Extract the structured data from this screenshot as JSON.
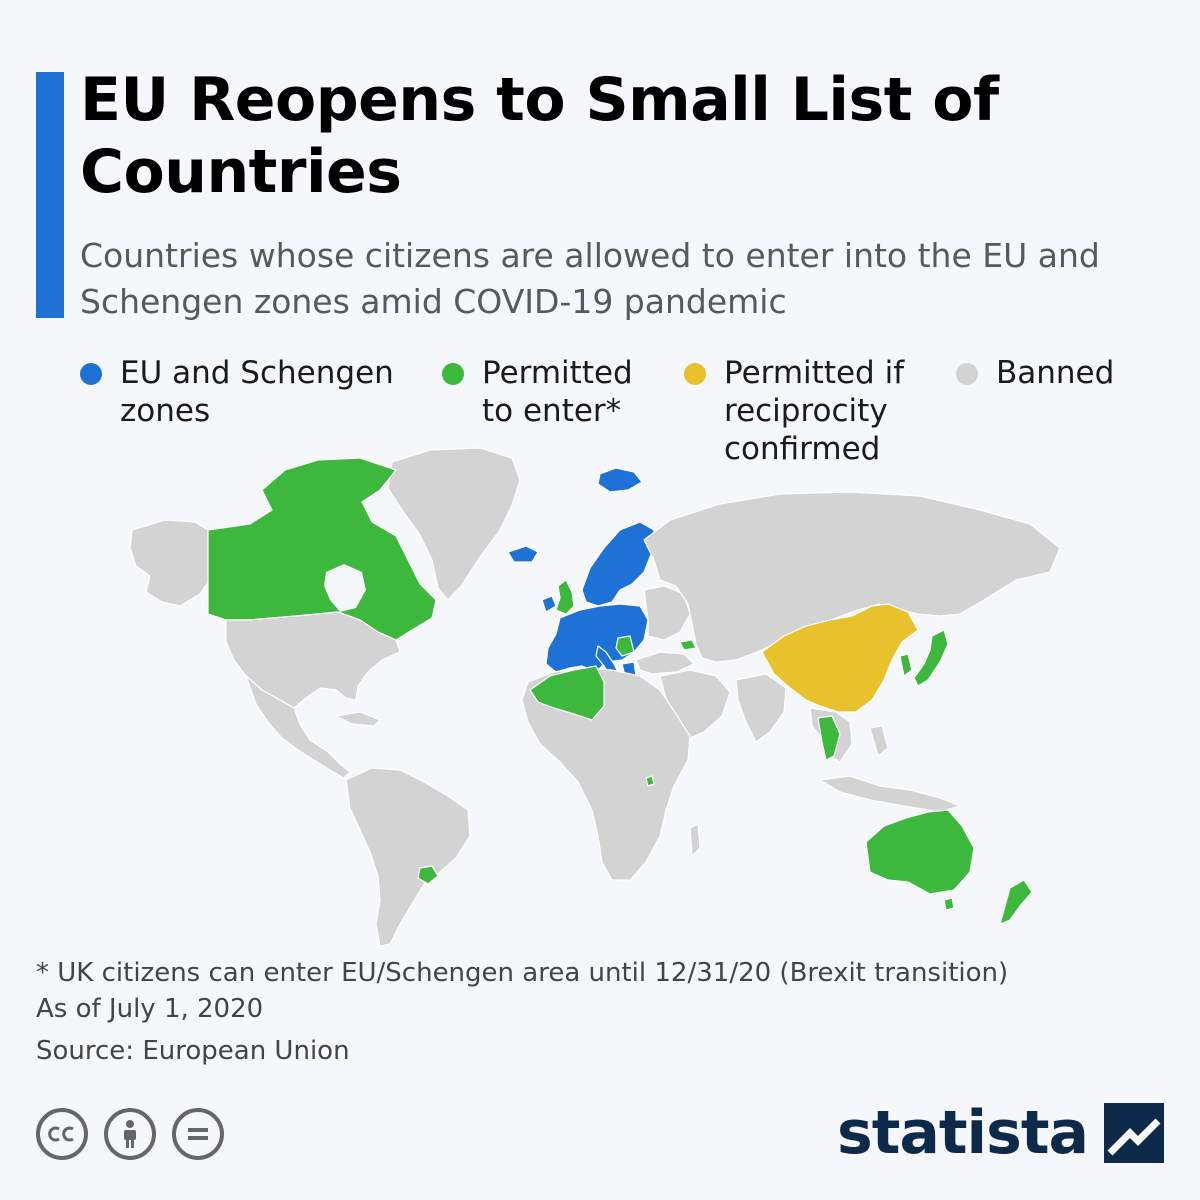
{
  "header": {
    "title": "EU Reopens to Small List of Countries",
    "subtitle": "Countries whose citizens are allowed to enter into the EU and Schengen zones amid COVID-19 pandemic"
  },
  "legend": [
    {
      "label": "EU and Schengen\nzones",
      "color": "#1e72d6"
    },
    {
      "label": "Permitted\nto enter*",
      "color": "#3cb83c"
    },
    {
      "label": "Permitted if\nreciprocity\nconfirmed",
      "color": "#e8c22d"
    },
    {
      "label": "Banned",
      "color": "#d3d3d3"
    }
  ],
  "map": {
    "categories": {
      "eu_schengen": [
        "Iceland",
        "Norway",
        "Sweden",
        "Finland",
        "Denmark",
        "Estonia",
        "Latvia",
        "Lithuania",
        "Poland",
        "Germany",
        "Netherlands",
        "Belgium",
        "Luxembourg",
        "France",
        "Spain",
        "Portugal",
        "Italy",
        "Switzerland",
        "Austria",
        "Czechia",
        "Slovakia",
        "Hungary",
        "Slovenia",
        "Croatia",
        "Romania",
        "Bulgaria",
        "Greece",
        "Ireland",
        "Cyprus",
        "Malta",
        "Svalbard"
      ],
      "permitted": [
        "Canada",
        "United Kingdom",
        "Algeria",
        "Morocco",
        "Tunisia",
        "Georgia",
        "Serbia",
        "Montenegro",
        "Rwanda",
        "South Korea",
        "Japan",
        "Thailand",
        "Australia",
        "New Zealand",
        "Uruguay"
      ],
      "reciprocity": [
        "China"
      ],
      "banned": [
        "All other countries"
      ]
    },
    "colors": {
      "eu_schengen": "#1e72d6",
      "permitted": "#3cb83c",
      "reciprocity": "#e8c22d",
      "banned": "#d3d3d3",
      "borders": "#ffffff",
      "ocean": "#f5f7fa"
    }
  },
  "footer": {
    "footnote": "* UK citizens can enter EU/Schengen area until 12/31/20 (Brexit transition)",
    "as_of": "As of July 1, 2020",
    "source": "Source: European Union",
    "license_icons": [
      "cc-icon",
      "attribution-icon",
      "no-derivatives-icon"
    ],
    "brand": "statista"
  }
}
